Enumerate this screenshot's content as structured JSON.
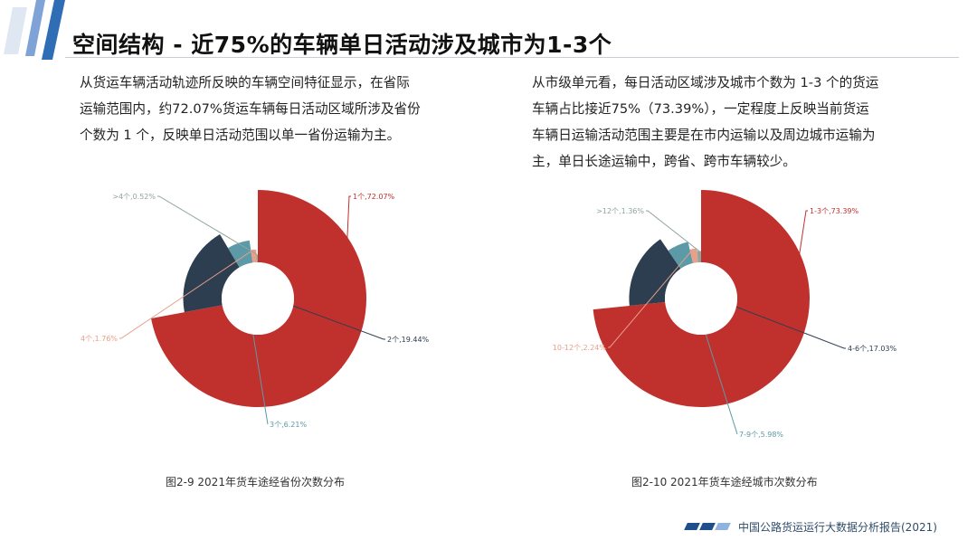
{
  "header": {
    "title": "空间结构 - 近75%的车辆单日活动涉及城市为1-3个"
  },
  "left_text": {
    "lines": [
      "从货运车辆活动轨迹所反映的车辆空间特征显示，在省际",
      "运输范围内，约72.07%货运车辆每日活动区域所涉及省份",
      "个数为 1 个，反映单日活动范围以单一省份运输为主。"
    ]
  },
  "right_text": {
    "lines": [
      "从市级单元看，每日活动区域涉及城市个数为 1-3 个的货运",
      "车辆占比接近75%（73.39%），一定程度上反映当前货运",
      "车辆日运输活动范围主要是在市内运输以及周边城市运输为",
      "主，单日长途运输中，跨省、跨市车辆较少。"
    ]
  },
  "footer": {
    "text": "中国公路货运运行大数据分析报告(2021)"
  },
  "colors": {
    "red": "#c0312e",
    "navy": "#2d3e50",
    "teal": "#5b9aa6",
    "salmon": "#e8a088",
    "gray": "#8fa5a0",
    "accent": "#3a6ea5"
  },
  "chart_data": [
    {
      "type": "pie",
      "variant": "rose",
      "caption": "图2-9 2021年货车途经省份次数分布",
      "slices": [
        {
          "label": "1个,72.07%",
          "name": "1个",
          "value": 72.07,
          "color": "#c0312e"
        },
        {
          "label": "2个,19.44%",
          "name": "2个",
          "value": 19.44,
          "color": "#2d3e50"
        },
        {
          "label": "3个,6.21%",
          "name": "3个",
          "value": 6.21,
          "color": "#5b9aa6"
        },
        {
          "label": "4个,1.76%",
          "name": "4个",
          "value": 1.76,
          "color": "#e8a088"
        },
        {
          "label": ">4个,0.52%",
          "name": ">4个",
          "value": 0.52,
          "color": "#8fa5a0"
        }
      ]
    },
    {
      "type": "pie",
      "variant": "rose",
      "caption": "图2-10 2021年货车途经城市次数分布",
      "slices": [
        {
          "label": "1-3个,73.39%",
          "name": "1-3个",
          "value": 73.39,
          "color": "#c0312e"
        },
        {
          "label": "4-6个,17.03%",
          "name": "4-6个",
          "value": 17.03,
          "color": "#2d3e50"
        },
        {
          "label": "7-9个,5.98%",
          "name": "7-9个",
          "value": 5.98,
          "color": "#5b9aa6"
        },
        {
          "label": "10-12个,2.24%",
          "name": "10-12个",
          "value": 2.24,
          "color": "#e8a088"
        },
        {
          "label": ">12个,1.36%",
          "name": ">12个",
          "value": 1.36,
          "color": "#8fa5a0"
        }
      ]
    }
  ]
}
